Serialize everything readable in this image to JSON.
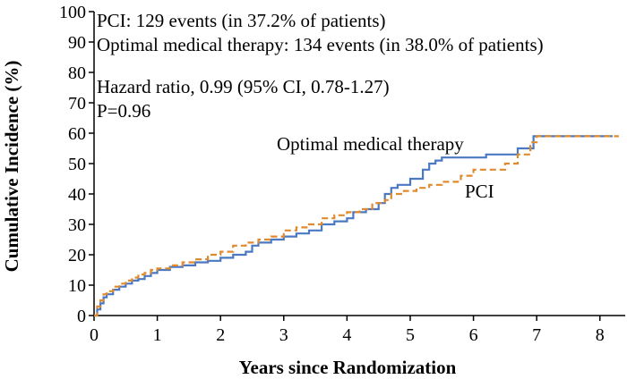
{
  "chart_data": {
    "type": "line",
    "title": "",
    "xlabel": "Years since Randomization",
    "ylabel": "Cumulative Incidence (%)",
    "xlim": [
      0,
      8.4
    ],
    "ylim": [
      0,
      100
    ],
    "x_ticks": [
      "0",
      "1",
      "2",
      "3",
      "4",
      "5",
      "6",
      "7",
      "8"
    ],
    "y_ticks": [
      "0",
      "10",
      "20",
      "30",
      "40",
      "50",
      "60",
      "70",
      "80",
      "90",
      "100"
    ],
    "grid": false,
    "legend": "none",
    "annotations": [
      "PCI: 129 events (in 37.2% of patients)",
      "Optimal medical therapy: 134 events (in 38.0% of patients)",
      "Hazard ratio, 0.99 (95% CI, 0.78-1.27)",
      "P=0.96"
    ],
    "series": [
      {
        "name": "Optimal medical therapy",
        "color": "#4a78c2",
        "dash": "solid",
        "step": true,
        "points": [
          [
            0,
            0
          ],
          [
            0.05,
            2
          ],
          [
            0.1,
            4
          ],
          [
            0.15,
            6
          ],
          [
            0.2,
            7
          ],
          [
            0.3,
            8.5
          ],
          [
            0.4,
            9.5
          ],
          [
            0.5,
            10.5
          ],
          [
            0.6,
            11.5
          ],
          [
            0.7,
            12
          ],
          [
            0.8,
            13
          ],
          [
            0.9,
            14
          ],
          [
            1.0,
            15
          ],
          [
            1.2,
            16
          ],
          [
            1.4,
            16.5
          ],
          [
            1.6,
            17.5
          ],
          [
            1.8,
            18
          ],
          [
            2.0,
            19
          ],
          [
            2.2,
            20
          ],
          [
            2.4,
            21
          ],
          [
            2.5,
            23
          ],
          [
            2.6,
            24
          ],
          [
            2.8,
            25
          ],
          [
            3.0,
            26
          ],
          [
            3.2,
            27
          ],
          [
            3.4,
            28
          ],
          [
            3.6,
            30
          ],
          [
            3.8,
            31
          ],
          [
            4.0,
            32
          ],
          [
            4.1,
            34
          ],
          [
            4.3,
            35
          ],
          [
            4.5,
            37
          ],
          [
            4.6,
            40
          ],
          [
            4.7,
            42
          ],
          [
            4.8,
            43
          ],
          [
            5.0,
            45
          ],
          [
            5.2,
            48
          ],
          [
            5.3,
            50
          ],
          [
            5.4,
            51
          ],
          [
            5.5,
            52
          ],
          [
            5.8,
            52
          ],
          [
            6.2,
            53
          ],
          [
            6.7,
            55
          ],
          [
            6.95,
            59
          ],
          [
            8.2,
            59
          ]
        ]
      },
      {
        "name": "PCI",
        "color": "#e08a2e",
        "dash": "dashed",
        "step": true,
        "points": [
          [
            0,
            0
          ],
          [
            0.05,
            3
          ],
          [
            0.1,
            5
          ],
          [
            0.15,
            7
          ],
          [
            0.2,
            8
          ],
          [
            0.3,
            9.5
          ],
          [
            0.4,
            10.5
          ],
          [
            0.5,
            11.5
          ],
          [
            0.6,
            12.5
          ],
          [
            0.7,
            13.5
          ],
          [
            0.8,
            14
          ],
          [
            0.9,
            15
          ],
          [
            1.0,
            15.5
          ],
          [
            1.2,
            16.5
          ],
          [
            1.4,
            17.5
          ],
          [
            1.6,
            18.5
          ],
          [
            1.8,
            20
          ],
          [
            2.0,
            21
          ],
          [
            2.2,
            23
          ],
          [
            2.4,
            24
          ],
          [
            2.6,
            25
          ],
          [
            2.8,
            26
          ],
          [
            3.0,
            28
          ],
          [
            3.2,
            29
          ],
          [
            3.4,
            30
          ],
          [
            3.6,
            32
          ],
          [
            3.8,
            33
          ],
          [
            4.0,
            34
          ],
          [
            4.2,
            35
          ],
          [
            4.4,
            37
          ],
          [
            4.6,
            38
          ],
          [
            4.7,
            40
          ],
          [
            4.9,
            41
          ],
          [
            5.1,
            42
          ],
          [
            5.3,
            43
          ],
          [
            5.5,
            44
          ],
          [
            5.6,
            44
          ],
          [
            5.8,
            46
          ],
          [
            6.0,
            48
          ],
          [
            6.5,
            50
          ],
          [
            6.7,
            53
          ],
          [
            6.9,
            57
          ],
          [
            7.0,
            59
          ],
          [
            8.3,
            59
          ]
        ]
      }
    ]
  }
}
